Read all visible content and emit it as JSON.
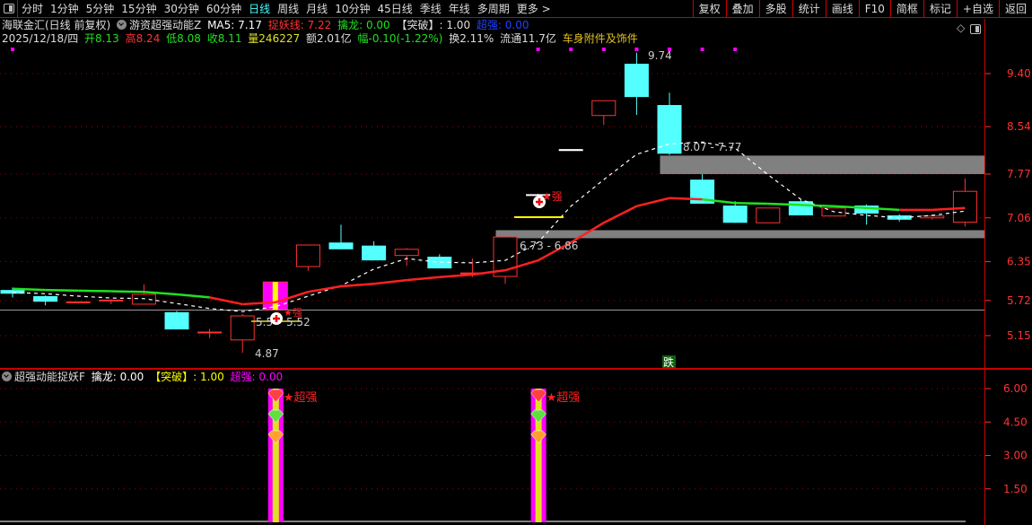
{
  "toolbar": {
    "periods": [
      "分时",
      "1分钟",
      "5分钟",
      "15分钟",
      "30分钟",
      "60分钟",
      "日线",
      "周线",
      "月线",
      "10分钟",
      "45日线",
      "季线",
      "年线",
      "多周期",
      "更多 >"
    ],
    "active_period": "日线",
    "right_buttons": [
      "复权",
      "叠加",
      "多股",
      "统计",
      "画线",
      "F10",
      "简框",
      "标记",
      "+自选",
      "返回"
    ]
  },
  "info1": {
    "stock": "海联金汇(日线 前复权)",
    "indicator": "游资超强动能Z",
    "ma5": "MA5: 7.17",
    "zhuoyao": "捉妖线: 7.22",
    "qinlong": "擒龙: 0.00",
    "tupo": "【突破】: 1.00",
    "chaoqiang": "超强: 0.00"
  },
  "info2": {
    "date": "2025/12/18/四",
    "open": "开8.13",
    "high": "高8.24",
    "low": "低8.08",
    "close": "收8.11",
    "volume": "量246227",
    "amount": "额2.01亿",
    "change": "幅-0.10(-1.22%)",
    "turnover": "换2.11%",
    "float": "流通11.7亿",
    "sector": "车身附件及饰件"
  },
  "sub_info": {
    "indicator": "超强动能捉妖F",
    "qinlong": "擒龙: 0.00",
    "tupo": "【突破】: 1.00",
    "chaoqiang": "超强: 0.00"
  },
  "colors": {
    "up": "#ff3232",
    "down": "#54ffff",
    "ma5": "#ffffff",
    "line_up": "#ff2020",
    "line_down": "#20e020",
    "zone": "#808080",
    "magenta": "#ff00ff",
    "yellow": "#e0e020",
    "axis": "#ff3232"
  },
  "annotations": {
    "high_label": "9.74",
    "low_label": "4.87",
    "zone_upper_label": "8.07 - 7.77",
    "zone_lower_label": "6.73 - 6.86",
    "mark_left_a": "5.5",
    "mark_left_b": "5.52",
    "strong_mark": "★强",
    "fall_badge": "跌",
    "sub_mark": "★超强"
  },
  "chart_data": [
    {
      "type": "candlestick",
      "ylim": [
        4.6,
        9.95
      ],
      "yticks": [
        "9.40",
        "8.54",
        "7.77",
        "7.06",
        "6.35",
        "5.72",
        "5.15"
      ],
      "candles": [
        [
          5.89,
          5.93,
          5.77,
          5.83
        ],
        [
          5.79,
          5.8,
          5.64,
          5.7
        ],
        [
          5.68,
          5.7,
          5.67,
          5.69
        ],
        [
          5.71,
          5.74,
          5.66,
          5.72
        ],
        [
          5.66,
          5.98,
          5.66,
          5.82
        ],
        [
          5.53,
          5.55,
          5.25,
          5.25
        ],
        [
          5.18,
          5.26,
          5.11,
          5.2
        ],
        [
          5.08,
          5.5,
          4.87,
          5.47
        ],
        [
          5.57,
          6.02,
          5.57,
          6.02
        ],
        [
          6.27,
          6.62,
          6.2,
          6.62
        ],
        [
          6.66,
          6.95,
          6.55,
          6.55
        ],
        [
          6.61,
          6.68,
          6.37,
          6.37
        ],
        [
          6.45,
          6.57,
          6.28,
          6.55
        ],
        [
          6.43,
          6.47,
          6.24,
          6.24
        ],
        [
          6.15,
          6.4,
          6.1,
          6.16
        ],
        [
          6.11,
          6.75,
          5.99,
          6.75
        ],
        [
          7.43,
          7.45,
          7.43,
          7.43
        ],
        [
          8.16,
          8.16,
          8.16,
          8.16
        ],
        [
          8.72,
          8.96,
          8.57,
          8.96
        ],
        [
          9.56,
          9.74,
          8.73,
          9.02
        ],
        [
          8.89,
          9.09,
          8.08,
          8.1
        ],
        [
          7.68,
          7.77,
          7.29,
          7.29
        ],
        [
          7.26,
          7.33,
          6.98,
          6.98
        ],
        [
          6.98,
          7.22,
          6.98,
          7.22
        ],
        [
          7.33,
          7.36,
          7.1,
          7.1
        ],
        [
          7.09,
          7.22,
          7.09,
          7.22
        ],
        [
          7.26,
          7.28,
          6.95,
          7.13
        ],
        [
          7.1,
          7.12,
          7.0,
          7.03
        ],
        [
          7.06,
          7.12,
          7.03,
          7.09
        ],
        [
          6.99,
          7.7,
          6.92,
          7.49
        ]
      ],
      "special_candle_index": 8,
      "flat_white_indices": [
        16,
        17
      ],
      "ma5": [
        5.85,
        5.83,
        5.79,
        5.76,
        5.75,
        5.67,
        5.59,
        5.54,
        5.62,
        5.79,
        5.96,
        6.23,
        6.4,
        6.34,
        6.33,
        6.37,
        6.66,
        7.25,
        7.68,
        8.09,
        8.26,
        8.29,
        8.19,
        7.76,
        7.36,
        7.16,
        7.1,
        7.06,
        7.1,
        7.17
      ],
      "zhuoyao_line": [
        5.91,
        5.89,
        5.88,
        5.87,
        5.86,
        5.82,
        5.77,
        5.66,
        5.69,
        5.86,
        5.95,
        5.99,
        6.05,
        6.1,
        6.14,
        6.21,
        6.37,
        6.66,
        6.98,
        7.25,
        7.38,
        7.36,
        7.3,
        7.29,
        7.27,
        7.25,
        7.22,
        7.19,
        7.19,
        7.22
      ],
      "zhuoyao_trend": [
        "down",
        "down",
        "down",
        "down",
        "down",
        "down",
        "down",
        "up",
        "up",
        "up",
        "up",
        "up",
        "up",
        "up",
        "up",
        "up",
        "up",
        "up",
        "up",
        "up",
        "up",
        "up",
        "down",
        "down",
        "down",
        "down",
        "down",
        "down",
        "up",
        "up"
      ],
      "zones": [
        {
          "low": 7.77,
          "high": 8.07,
          "from_index": 20
        },
        {
          "low": 6.73,
          "high": 6.86,
          "from_index": 15
        }
      ],
      "hline": 5.52,
      "signal_dots_indices": [
        0,
        16,
        17,
        18,
        19,
        20,
        21,
        22
      ]
    },
    {
      "type": "bar",
      "ylim": [
        0,
        6.0
      ],
      "yticks": [
        "6.00",
        "4.50",
        "3.00",
        "1.50"
      ],
      "bars": [
        {
          "index": 8,
          "value": 6.0
        },
        {
          "index": 16,
          "value": 6.0
        }
      ]
    }
  ]
}
